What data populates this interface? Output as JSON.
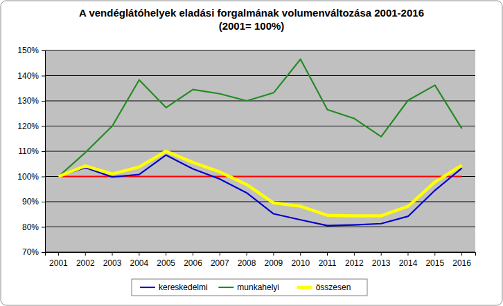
{
  "chart_data": {
    "type": "line",
    "title": "A vendéglátóhelyek eladási forgalmának volumenváltozása 2001-2016",
    "subtitle": "(2001= 100%)",
    "categories": [
      "2001",
      "2002",
      "2003",
      "2004",
      "2005",
      "2006",
      "2007",
      "2008",
      "2009",
      "2010",
      "2011",
      "2012",
      "2013",
      "2014",
      "2015",
      "2016"
    ],
    "series": [
      {
        "name": "kereskedelmi",
        "color": "#0000cc",
        "values": [
          100,
          103.5,
          99.8,
          100.8,
          108.5,
          103,
          99,
          93.5,
          85.2,
          82.8,
          80.5,
          80.8,
          81.3,
          84.2,
          94.5,
          103.3
        ]
      },
      {
        "name": "munkahelyi",
        "color": "#228b22",
        "values": [
          100,
          109.5,
          120,
          138.3,
          127.3,
          134.5,
          132.8,
          130,
          133.2,
          146.5,
          126.5,
          123,
          115.8,
          130.2,
          136.2,
          119
        ]
      },
      {
        "name": "összesen",
        "color": "#ffff00",
        "values": [
          100,
          104.2,
          101,
          103.8,
          110,
          105.6,
          101.8,
          96.8,
          89.5,
          88.2,
          84.6,
          84.4,
          84.4,
          88.2,
          97.8,
          104.5
        ]
      }
    ],
    "baseline": 100,
    "ylim": [
      70,
      150
    ],
    "yticks": [
      {
        "value": 70,
        "label": "70%"
      },
      {
        "value": 80,
        "label": "80%"
      },
      {
        "value": 90,
        "label": "90%"
      },
      {
        "value": 100,
        "label": "100%"
      },
      {
        "value": 110,
        "label": "110%"
      },
      {
        "value": 120,
        "label": "120%"
      },
      {
        "value": 130,
        "label": "130%"
      },
      {
        "value": 140,
        "label": "140%"
      },
      {
        "value": 150,
        "label": "150%"
      }
    ],
    "grid": true,
    "legend": "bottom"
  }
}
